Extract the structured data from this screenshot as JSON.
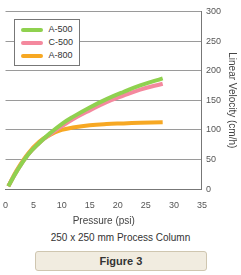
{
  "chart_data": {
    "type": "line",
    "x_label": "Pressure (psi)",
    "y_label": "Linear Velocity (cm/h)",
    "subtitle": "250 x 250 mm Process Column",
    "caption": "Figure 3",
    "x": [
      0.5,
      2,
      4,
      6,
      8,
      10,
      12,
      15,
      18,
      21,
      24,
      28
    ],
    "series": [
      {
        "name": "A-500",
        "color": "#8fd14f",
        "values": [
          5,
          30,
          58,
          78,
          95,
          110,
          122,
          138,
          152,
          164,
          175,
          187
        ]
      },
      {
        "name": "C-500",
        "color": "#f4899e",
        "values": [
          5,
          30,
          58,
          78,
          93,
          106,
          118,
          133,
          147,
          158,
          168,
          178
        ]
      },
      {
        "name": "A-800",
        "color": "#f7a823",
        "values": [
          5,
          32,
          60,
          80,
          92,
          100,
          104,
          108,
          110,
          111,
          112,
          113
        ]
      }
    ],
    "xlim": [
      0,
      35
    ],
    "xticks": [
      0,
      5,
      10,
      15,
      20,
      25,
      30,
      35
    ],
    "ylim": [
      0,
      300
    ],
    "yticks": [
      0,
      50,
      100,
      150,
      200,
      250,
      300
    ],
    "grid": true,
    "legend": "upper left"
  }
}
